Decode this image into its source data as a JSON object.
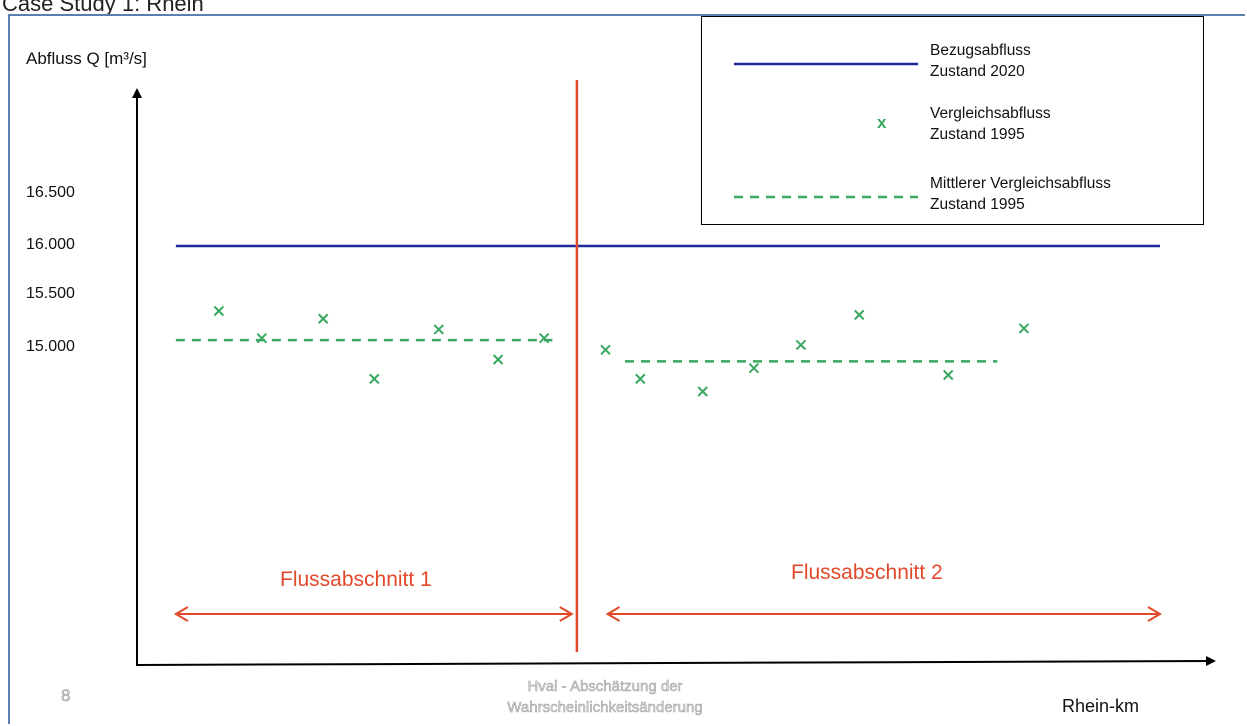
{
  "header_fragment": "Case Study 1: Rhein",
  "page_number": "8",
  "footer": {
    "line1": "Hval - Abschätzung der",
    "line2": "Wahrscheinlichkeitsänderung"
  },
  "colors": {
    "reference_line": "#1f2a99",
    "points": "#3aa860",
    "mean_line": "#3aa860",
    "divider": "#e2492a",
    "frame": "#5b7fb0"
  },
  "chart_data": {
    "type": "scatter",
    "title": "",
    "ylabel": "Abfluss Q [m³/s]",
    "xlabel": "Rhein-km",
    "yticks": [
      "15.000",
      "15.500",
      "16.000",
      "16.500"
    ],
    "ytick_values": [
      15000,
      15500,
      16000,
      16500
    ],
    "ylim": [
      10000,
      17500
    ],
    "xlim": [
      0,
      100
    ],
    "grid": false,
    "legend_position": "top-right",
    "legend": [
      {
        "key": "reference",
        "symbol": "line",
        "lines": [
          "Bezugsabfluss",
          "Zustand 2020"
        ]
      },
      {
        "key": "points",
        "symbol": "x",
        "marker_label": "x",
        "lines": [
          "Vergleichsabfluss",
          "Zustand 1995"
        ]
      },
      {
        "key": "mean",
        "symbol": "dashed-line",
        "lines": [
          "Mittlerer Vergleichsabfluss",
          "Zustand 1995"
        ]
      }
    ],
    "reference_line": {
      "y": 16000,
      "x_range": [
        3.8,
        100
      ]
    },
    "divider_x": 43.0,
    "sections": [
      {
        "label": "Flussabschnitt 1",
        "x_range": [
          3.8,
          42.5
        ],
        "mean": 15030,
        "mean_x_range": [
          3.8,
          40.6
        ]
      },
      {
        "label": "Flussabschnitt 2",
        "x_range": [
          46.0,
          100
        ],
        "mean": 14810,
        "mean_x_range": [
          47.7,
          84.1
        ]
      }
    ],
    "series": [
      {
        "name": "Vergleichsabfluss Zustand 1995",
        "points": [
          {
            "x": 8.0,
            "y": 15330
          },
          {
            "x": 12.2,
            "y": 15050
          },
          {
            "x": 18.2,
            "y": 15250
          },
          {
            "x": 23.2,
            "y": 14630
          },
          {
            "x": 29.5,
            "y": 15140
          },
          {
            "x": 35.3,
            "y": 14830
          },
          {
            "x": 39.8,
            "y": 15050
          },
          {
            "x": 45.8,
            "y": 14930
          },
          {
            "x": 49.2,
            "y": 14630
          },
          {
            "x": 55.3,
            "y": 14500
          },
          {
            "x": 60.3,
            "y": 14740
          },
          {
            "x": 64.9,
            "y": 14980
          },
          {
            "x": 70.6,
            "y": 15290
          },
          {
            "x": 79.3,
            "y": 14670
          },
          {
            "x": 86.7,
            "y": 15150
          }
        ]
      }
    ]
  }
}
